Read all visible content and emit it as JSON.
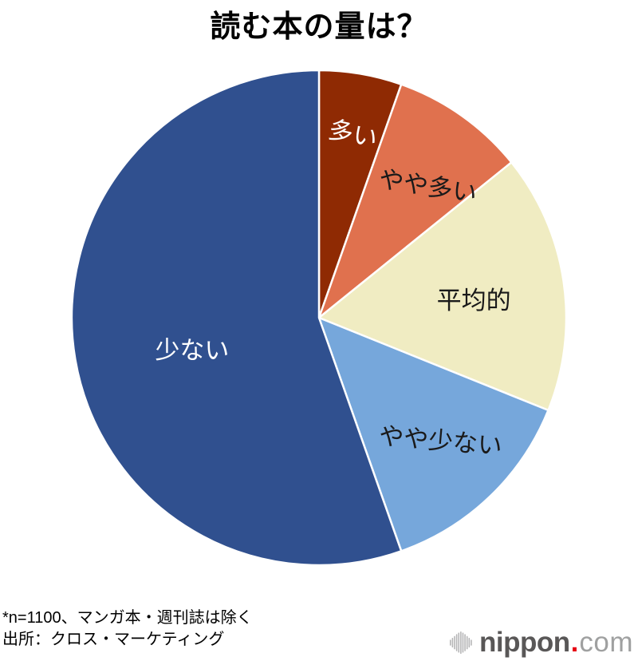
{
  "title": "読む本の量は？",
  "chart_data": {
    "type": "pie",
    "title": "読む本の量は？",
    "start_angle_deg": 0,
    "direction": "clockwise",
    "legend_position": "none",
    "labels_inside_slices": true,
    "segments": [
      {
        "label": "多い",
        "value_pct": 5.4,
        "color": "#8F2A03",
        "label_color": "#FFFFFF"
      },
      {
        "label": "やや多い",
        "value_pct": 8.8,
        "color": "#E0714E",
        "label_color": "#1A1A1A"
      },
      {
        "label": "平均的",
        "value_pct": 16.9,
        "color": "#F0ECC2",
        "label_color": "#1A1A1A"
      },
      {
        "label": "やや少ない",
        "value_pct": 13.5,
        "color": "#76A7DB",
        "label_color": "#1A1A1A"
      },
      {
        "label": "少ない",
        "value_pct": 55.4,
        "color": "#30508F",
        "label_color": "#FFFFFF"
      }
    ]
  },
  "footnotes": {
    "line1": "*n=1100、マンガ本・週刊誌は除く",
    "line2": "出所：クロス・マーケティング"
  },
  "logo": {
    "name": "nippon",
    "dot": ".",
    "tld": "com",
    "brand_color": "#595757",
    "tld_color": "#9FA0A0",
    "dot_color": "#E60012",
    "icon_color": "#B5B5B6"
  }
}
